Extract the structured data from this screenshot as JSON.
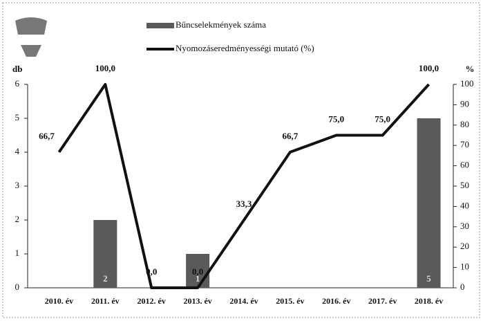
{
  "chart_data": {
    "type": "bar-line",
    "categories": [
      "2010. év",
      "2011. év",
      "2012. év",
      "2013. év",
      "2014. év",
      "2015. év",
      "2016. év",
      "2017. év",
      "2018. év"
    ],
    "series": [
      {
        "name": "Bűncselekmények száma",
        "type": "bar",
        "color": "#5a5a5a",
        "values": [
          0,
          2,
          0,
          1,
          0,
          0,
          0,
          0,
          5
        ]
      },
      {
        "name": "Nyomozáseredményességi mutató (%)",
        "type": "line",
        "axis": "y2",
        "color": "#111111",
        "values": [
          66.7,
          100,
          0,
          0,
          33.3,
          66.7,
          75,
          75,
          100
        ],
        "value_labels": [
          "66,7",
          "100,0",
          "0,0",
          "0,0",
          "33,3",
          "66,7",
          "75,0",
          "75,0",
          "100,0"
        ]
      }
    ],
    "ylabel": "db",
    "y2label": "%",
    "ylim": [
      0,
      6
    ],
    "yticks": [
      0,
      1,
      2,
      3,
      4,
      5,
      6
    ],
    "y2lim": [
      0,
      100
    ],
    "y2ticks": [
      0,
      10,
      20,
      30,
      40,
      50,
      60,
      70,
      80,
      90,
      100
    ]
  }
}
